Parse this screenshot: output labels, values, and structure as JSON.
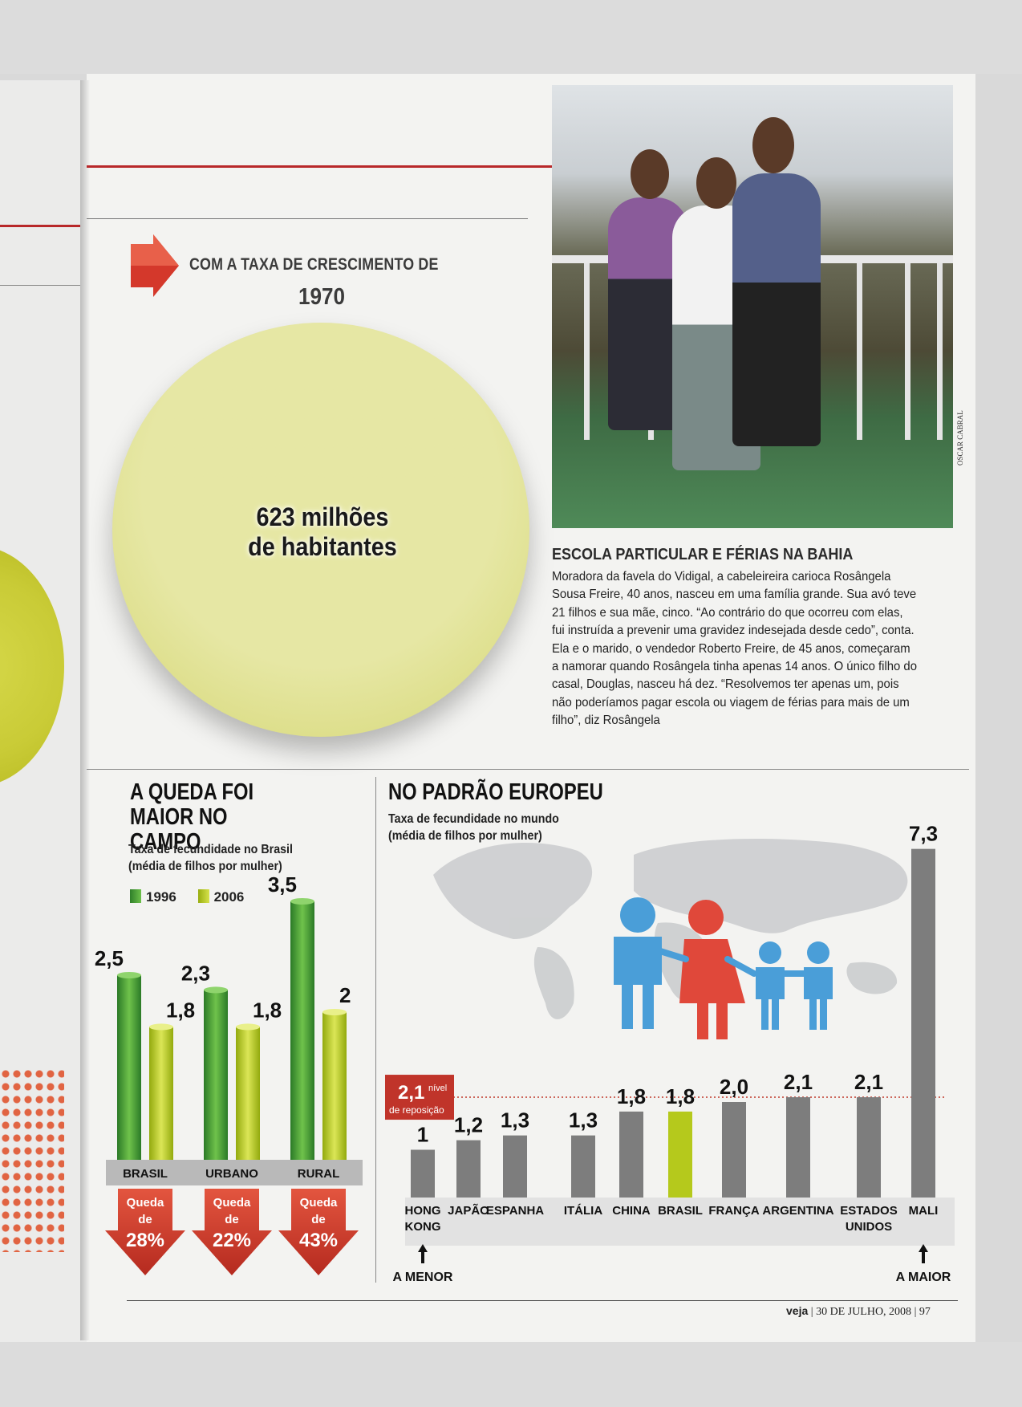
{
  "kicker": "COM A TAXA DE CRESCIMENTO DE",
  "kicker_year": "1970",
  "population_circle": {
    "line1": "623 milhões",
    "line2": "de habitantes"
  },
  "photo_credit": "OSCAR CABRAL",
  "caption": {
    "title": "ESCOLA PARTICULAR E FÉRIAS NA BAHIA",
    "body": "Moradora da favela do Vidigal, a cabeleireira carioca Rosângela Sousa Freire, 40 anos, nasceu em uma família grande. Sua avó teve 21 filhos e sua mãe, cinco. “Ao contrário do que ocorreu com elas, fui instruída a prevenir uma gravidez indesejada desde cedo”, conta. Ela e o marido, o vendedor Roberto Freire, de 45 anos, começaram a namorar quando Rosângela tinha apenas 14 anos. O único filho do casal, Douglas, nasceu há dez. “Resolvemos ter apenas um, pois não poderíamos pagar escola ou viagem de férias para mais de um filho”, diz Rosângela"
  },
  "colors": {
    "green_1996": "#3f9a35",
    "green_2006": "#b5c91c",
    "grey_bar": "#7d7d7d",
    "red": "#d4382b",
    "ref_line": "#c0392b"
  },
  "chart_data": [
    {
      "type": "bar",
      "title": "A QUEDA FOI MAIOR NO CAMPO",
      "subtitle": "Taxa de fecundidade no Brasil (média de filhos por mulher)",
      "legend": [
        "1996",
        "2006"
      ],
      "categories": [
        "BRASIL",
        "URBANO",
        "RURAL"
      ],
      "series": [
        {
          "name": "1996",
          "values": [
            2.5,
            2.3,
            3.5
          ],
          "labels": [
            "2,5",
            "2,3",
            "3,5"
          ]
        },
        {
          "name": "2006",
          "values": [
            1.8,
            1.8,
            2
          ],
          "labels": [
            "1,8",
            "1,8",
            "2"
          ]
        }
      ],
      "drops": [
        {
          "l1": "Queda",
          "l2": "de",
          "pct": "28%"
        },
        {
          "l1": "Queda",
          "l2": "de",
          "pct": "22%"
        },
        {
          "l1": "Queda",
          "l2": "de",
          "pct": "43%"
        }
      ]
    },
    {
      "type": "bar",
      "title": "NO PADRÃO EUROPEU",
      "subtitle": "Taxa de fecundidade no mundo (média de filhos por mulher)",
      "categories": [
        [
          "HONG",
          "KONG"
        ],
        [
          "JAPÃO"
        ],
        [
          "ESPANHA"
        ],
        [
          "ITÁLIA"
        ],
        [
          "CHINA"
        ],
        [
          "BRASIL"
        ],
        [
          "FRANÇA"
        ],
        [
          "ARGENTINA"
        ],
        [
          "ESTADOS",
          "UNIDOS"
        ],
        [
          "MALI"
        ]
      ],
      "values": [
        1,
        1.2,
        1.3,
        1.3,
        1.8,
        1.8,
        2.0,
        2.1,
        2.1,
        7.3
      ],
      "labels": [
        "1",
        "1,2",
        "1,3",
        "1,3",
        "1,8",
        "1,8",
        "2,0",
        "2,1",
        "2,1",
        "7,3"
      ],
      "highlight": "BRASIL",
      "reference": {
        "value": 2.1,
        "big": "2,1",
        "small1": "nível",
        "small2": "de reposição"
      },
      "extremes": {
        "min": "A MENOR",
        "max": "A MAIOR"
      }
    }
  ],
  "footer": {
    "brand": "veja",
    "date": "30 DE JULHO, 2008",
    "page": "97"
  }
}
